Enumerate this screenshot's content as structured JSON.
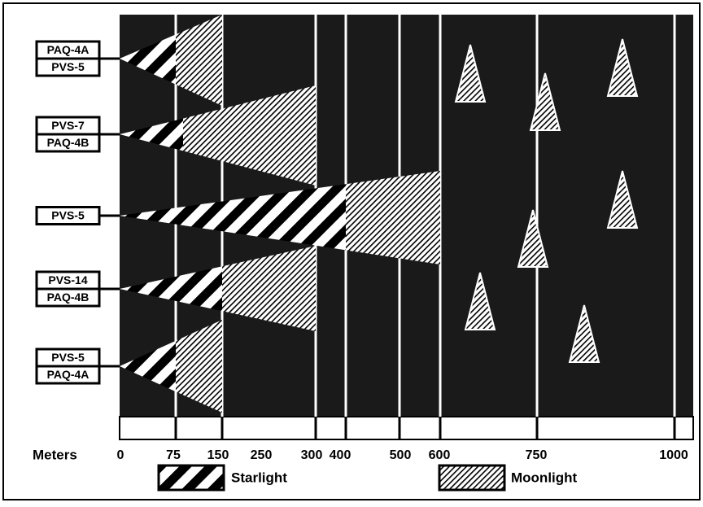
{
  "devices": [
    [
      "PAQ-4A",
      "PVS-5"
    ],
    [
      "PVS-7",
      "PAQ-4B"
    ],
    [
      "PVS-5"
    ],
    [
      "PVS-14",
      "PAQ-4B"
    ],
    [
      "PVS-5",
      "PAQ-4A"
    ]
  ],
  "axis": {
    "title": "Meters",
    "ticks": [
      "0",
      "75",
      "150",
      "250",
      "300",
      "400",
      "500",
      "600",
      "750",
      "1000"
    ]
  },
  "legend": {
    "starlight": "Starlight",
    "moonlight": "Moonlight"
  }
}
